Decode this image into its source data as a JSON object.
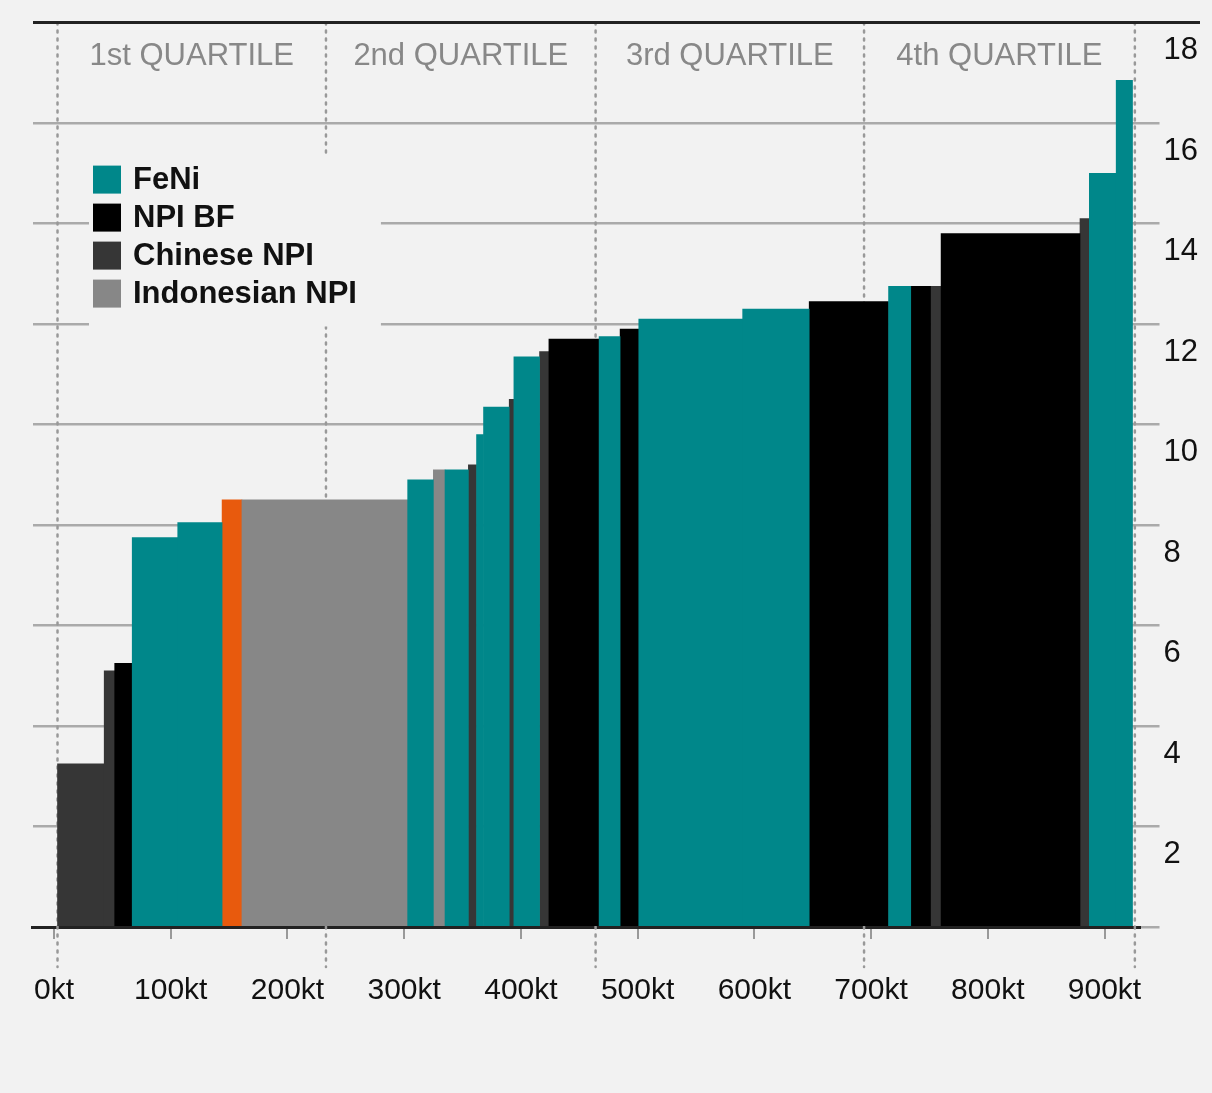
{
  "chart_data": {
    "type": "histogram",
    "bins": [
      3,
      43,
      52,
      67,
      106,
      144,
      161,
      303,
      325,
      335,
      355,
      362,
      368,
      390,
      394,
      416,
      424,
      467,
      485,
      501,
      590,
      647,
      715,
      734,
      751,
      760,
      879,
      887,
      910,
      924
    ],
    "series": [
      {
        "name": "FeNi",
        "color": "#00878a",
        "values": [
          null,
          null,
          null,
          7.75,
          8.05,
          null,
          null,
          8.9,
          null,
          9.1,
          null,
          9.8,
          10.35,
          null,
          11.35,
          null,
          null,
          11.75,
          null,
          12.1,
          12.3,
          null,
          12.75,
          null,
          null,
          null,
          null,
          15,
          16.85
        ]
      },
      {
        "name": "NPI BF",
        "color": "#000000",
        "values": [
          null,
          null,
          5.25,
          null,
          null,
          null,
          null,
          null,
          null,
          null,
          null,
          null,
          null,
          null,
          null,
          null,
          11.7,
          null,
          11.9,
          null,
          null,
          12.45,
          null,
          12.75,
          null,
          13.8,
          null,
          null,
          null
        ]
      },
      {
        "name": "Chinese NPI",
        "color": "#363636",
        "values": [
          3.25,
          5.1,
          null,
          null,
          null,
          null,
          null,
          null,
          null,
          null,
          9.2,
          null,
          null,
          10.5,
          null,
          11.45,
          null,
          null,
          null,
          null,
          null,
          null,
          null,
          null,
          12.75,
          null,
          14.1,
          null,
          null
        ]
      },
      {
        "name": "Indonesian NPI",
        "color": "#878787",
        "values": [
          null,
          null,
          null,
          null,
          null,
          null,
          8.5,
          null,
          9.1,
          null,
          null,
          null,
          null,
          null,
          null,
          null,
          null,
          null,
          null,
          null,
          null,
          null,
          null,
          null,
          null,
          null,
          null,
          null,
          null
        ]
      },
      {
        "color": "#e85a0d",
        "values": [
          null,
          null,
          null,
          null,
          null,
          8.5,
          null,
          null,
          null,
          null,
          null,
          null,
          null,
          null,
          null,
          null,
          null,
          null,
          null,
          null,
          null,
          null,
          null,
          null,
          null,
          null,
          null,
          null,
          null
        ]
      }
    ],
    "xlim": [
      -18,
      930
    ],
    "xticks": [
      {
        "value": 0,
        "label": "0kt"
      },
      {
        "value": 100,
        "label": "100kt"
      },
      {
        "value": 200,
        "label": "200kt"
      },
      {
        "value": 300,
        "label": "300kt"
      },
      {
        "value": 400,
        "label": "400kt"
      },
      {
        "value": 500,
        "label": "500kt"
      },
      {
        "value": 600,
        "label": "600kt"
      },
      {
        "value": 700,
        "label": "700kt"
      },
      {
        "value": 800,
        "label": "800kt"
      },
      {
        "value": 900,
        "label": "900kt"
      }
    ],
    "ylim": [
      0,
      18
    ],
    "yticks": [
      {
        "value": 0,
        "label": null
      },
      2,
      4,
      6,
      8,
      10,
      12,
      14,
      16,
      18
    ],
    "grid": "y",
    "legend": "top left",
    "ref_lines": [
      {
        "axis": "x",
        "value": 3,
        "color": "#999999",
        "line_style": "dotted"
      },
      {
        "axis": "x",
        "value": 233,
        "color": "#999999",
        "line_style": "dotted"
      },
      {
        "axis": "x",
        "value": 464,
        "color": "#999999",
        "line_style": "dotted"
      },
      {
        "axis": "x",
        "value": 694,
        "color": "#999999",
        "line_style": "dotted"
      },
      {
        "axis": "x",
        "value": 926,
        "color": "#999999",
        "line_style": "dotted"
      }
    ],
    "annotations": [
      "1st QUARTILE",
      "2nd QUARTILE",
      "3rd QUARTILE",
      "4th QUARTILE"
    ]
  }
}
